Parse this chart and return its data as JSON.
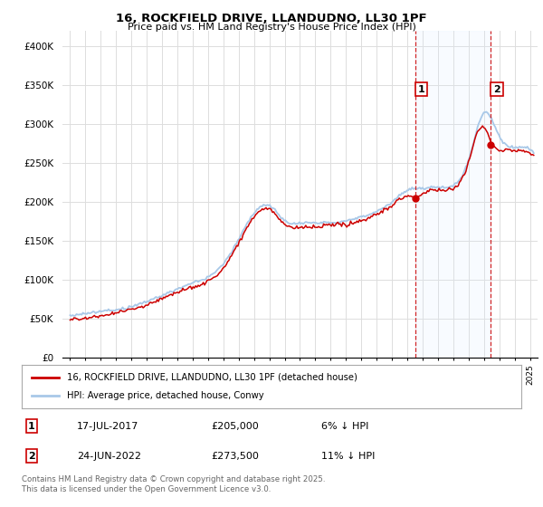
{
  "title": "16, ROCKFIELD DRIVE, LLANDUDNO, LL30 1PF",
  "subtitle": "Price paid vs. HM Land Registry's House Price Index (HPI)",
  "legend_line1": "16, ROCKFIELD DRIVE, LLANDUDNO, LL30 1PF (detached house)",
  "legend_line2": "HPI: Average price, detached house, Conwy",
  "annotation1_date": "17-JUL-2017",
  "annotation1_price": 205000,
  "annotation2_date": "24-JUN-2022",
  "annotation2_price": 273500,
  "hpi_color": "#a8c8e8",
  "price_color": "#cc0000",
  "vline_color": "#cc0000",
  "shade_color": "#ddeeff",
  "ylim": [
    0,
    420000
  ],
  "yticks": [
    0,
    50000,
    100000,
    150000,
    200000,
    250000,
    300000,
    350000,
    400000
  ],
  "ytick_labels": [
    "£0",
    "£50K",
    "£100K",
    "£150K",
    "£200K",
    "£250K",
    "£300K",
    "£350K",
    "£400K"
  ],
  "footer": "Contains HM Land Registry data © Crown copyright and database right 2025.\nThis data is licensed under the Open Government Licence v3.0.",
  "background_color": "#ffffff",
  "grid_color": "#dddddd"
}
